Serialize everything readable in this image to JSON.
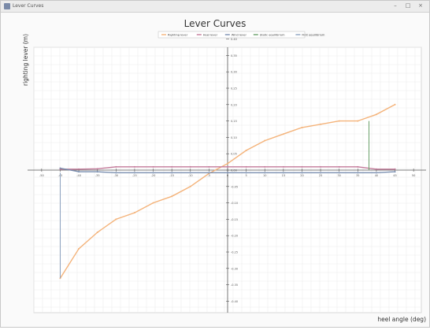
{
  "window": {
    "title": "Lever Curves",
    "controls": [
      "–",
      "□",
      "×"
    ]
  },
  "chart_data": {
    "type": "line",
    "title": "Lever Curves",
    "xlabel": "heel angle (deg)",
    "ylabel": "righting lever (m)",
    "xlim": [
      -50,
      50
    ],
    "ylim": [
      -0.4,
      0.4
    ],
    "grid": true,
    "legend_placement": "top-center",
    "legend": [
      "Righting lever",
      "Heel lever",
      "Wind lever",
      "Static equilibrium",
      "First equilibrium"
    ],
    "x_ticks": [
      "-50",
      "-45",
      "-40",
      "-35",
      "-30",
      "-25",
      "-20",
      "-15",
      "-10",
      "-5",
      "0",
      "5",
      "10",
      "15",
      "20",
      "25",
      "30",
      "35",
      "40",
      "45",
      "50"
    ],
    "y_ticks": [
      "0.40",
      "0.35",
      "0.30",
      "0.25",
      "0.20",
      "0.15",
      "0.10",
      "0.05",
      "0.00",
      "-0.05",
      "-0.10",
      "-0.15",
      "-0.20",
      "-0.25",
      "-0.30",
      "-0.35",
      "-0.40"
    ],
    "y_tick_values": [
      0.4,
      0.35,
      0.3,
      0.25,
      0.2,
      0.15,
      0.1,
      0.05,
      0.0,
      -0.05,
      -0.1,
      -0.15,
      -0.2,
      -0.25,
      -0.3,
      -0.35,
      -0.4
    ],
    "series": [
      {
        "name": "Righting lever",
        "color": "#f4b37a",
        "type": "line",
        "x": [
          -45,
          -40,
          -35,
          -30,
          -25,
          -20,
          -15,
          -10,
          -5,
          0,
          5,
          10,
          15,
          20,
          25,
          30,
          35,
          40,
          45
        ],
        "y": [
          -0.33,
          -0.24,
          -0.19,
          -0.15,
          -0.13,
          -0.1,
          -0.08,
          -0.05,
          -0.01,
          0.02,
          0.06,
          0.09,
          0.11,
          0.13,
          0.14,
          0.15,
          0.15,
          0.17,
          0.2
        ]
      },
      {
        "name": "Heel lever",
        "color": "#c47a9a",
        "type": "line",
        "x": [
          -45,
          -40,
          -35,
          -30,
          -25,
          -20,
          -15,
          -10,
          -5,
          0,
          5,
          10,
          15,
          20,
          25,
          30,
          35,
          40,
          45
        ],
        "y": [
          0.003,
          0.003,
          0.004,
          0.01,
          0.01,
          0.01,
          0.01,
          0.01,
          0.01,
          0.01,
          0.01,
          0.01,
          0.01,
          0.01,
          0.01,
          0.01,
          0.01,
          0.003,
          0.003
        ]
      },
      {
        "name": "Wind lever",
        "color": "#7a8fb0",
        "type": "line",
        "x": [
          -45,
          -40,
          -35,
          -30,
          -25,
          -20,
          -15,
          -10,
          -5,
          0,
          5,
          10,
          15,
          20,
          25,
          30,
          35,
          40,
          45
        ],
        "y": [
          0.006,
          -0.005,
          -0.005,
          -0.008,
          -0.008,
          -0.008,
          -0.008,
          -0.008,
          -0.008,
          -0.008,
          -0.008,
          -0.008,
          -0.008,
          -0.008,
          -0.008,
          -0.008,
          -0.008,
          -0.008,
          -0.005
        ]
      },
      {
        "name": "Static equilibrium",
        "color": "#6aa06a",
        "type": "vline",
        "x": [
          38,
          38
        ],
        "y": [
          0.0,
          0.15
        ]
      },
      {
        "name": "First equilibrium",
        "color": "#8da2c0",
        "type": "vline",
        "x": [
          -45,
          -45
        ],
        "y": [
          -0.008,
          -0.33
        ]
      }
    ]
  }
}
